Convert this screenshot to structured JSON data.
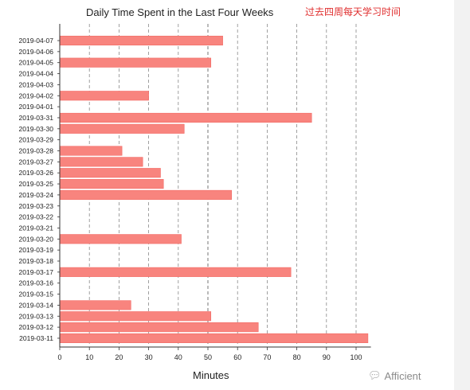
{
  "chart_data": {
    "type": "bar",
    "orientation": "horizontal",
    "title": "Daily Time Spent in the Last Four Weeks",
    "xlabel": "Minutes",
    "ylabel": "",
    "xlim": [
      0,
      105
    ],
    "xticks": [
      0,
      10,
      20,
      30,
      40,
      50,
      60,
      70,
      80,
      90,
      100
    ],
    "grid": "vertical dashed",
    "bar_color": "#f8847e",
    "categories": [
      "2019-04-07",
      "2019-04-06",
      "2019-04-05",
      "2019-04-04",
      "2019-04-03",
      "2019-04-02",
      "2019-04-01",
      "2019-03-31",
      "2019-03-30",
      "2019-03-29",
      "2019-03-28",
      "2019-03-27",
      "2019-03-26",
      "2019-03-25",
      "2019-03-24",
      "2019-03-23",
      "2019-03-22",
      "2019-03-21",
      "2019-03-20",
      "2019-03-19",
      "2019-03-18",
      "2019-03-17",
      "2019-03-16",
      "2019-03-15",
      "2019-03-14",
      "2019-03-13",
      "2019-03-12",
      "2019-03-11"
    ],
    "values": [
      55,
      0,
      51,
      0,
      0,
      30,
      0,
      85,
      42,
      0,
      21,
      28,
      34,
      35,
      58,
      0,
      0,
      0,
      41,
      0,
      0,
      78,
      0,
      0,
      24,
      51,
      67,
      104
    ]
  },
  "annotation": "过去四周每天学习时间",
  "watermark": {
    "text": "Afficient",
    "icon": "chat-bubble-icon"
  }
}
